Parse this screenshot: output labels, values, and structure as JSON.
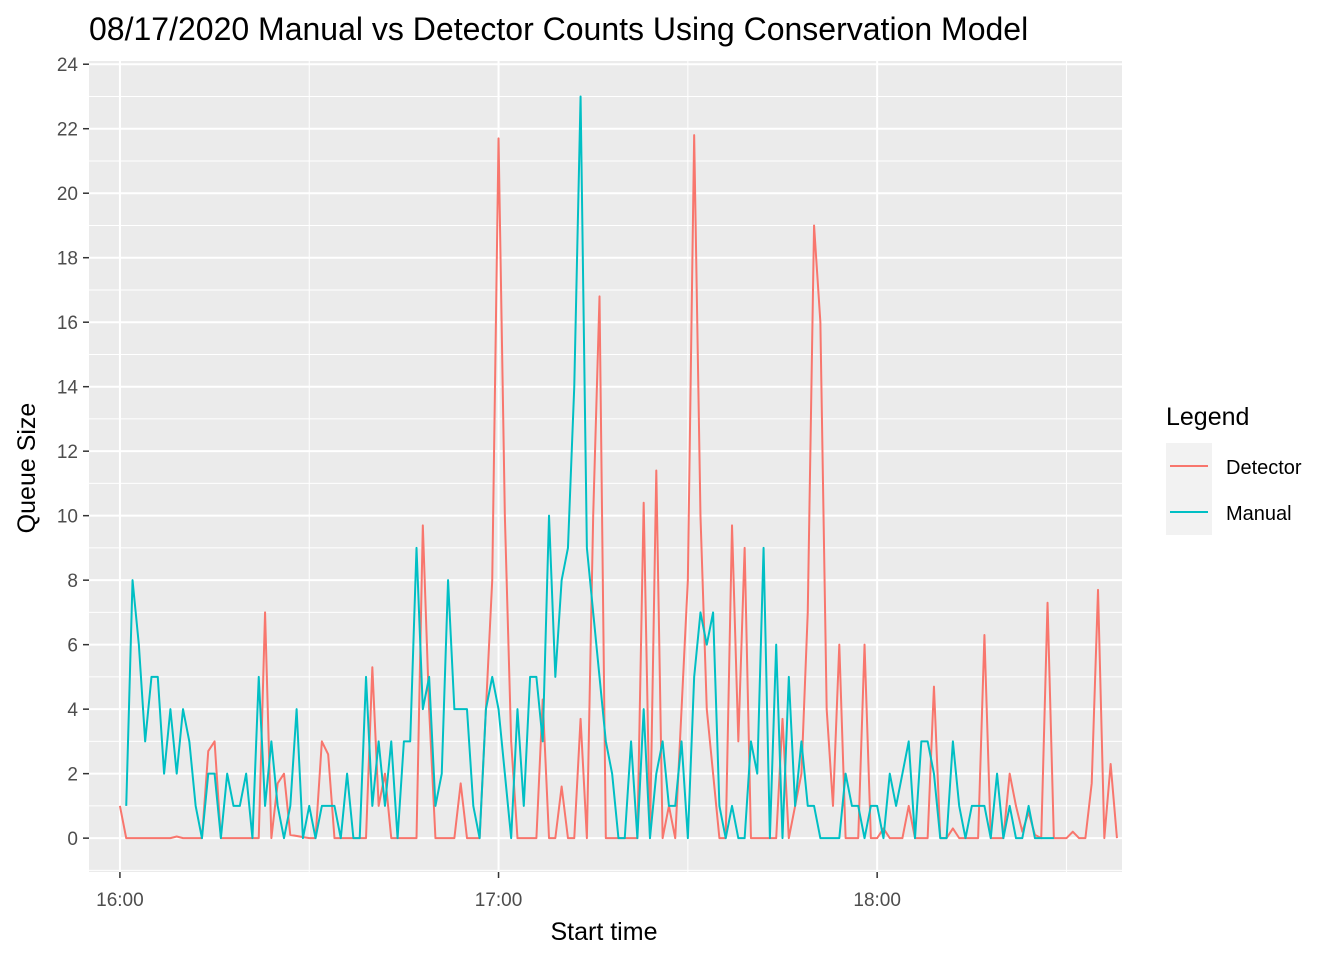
{
  "chart_data": {
    "type": "line",
    "title": "08/17/2020 Manual vs Detector Counts Using Conservation Model",
    "xlabel": "Start time",
    "ylabel": "Queue Size",
    "x_unit": "minutes after 16:00",
    "xlim": [
      -4.9,
      158.8
    ],
    "ylim": [
      -1.05,
      24.1
    ],
    "x_ticks": [
      {
        "value": 0,
        "label": "16:00"
      },
      {
        "value": 60,
        "label": "17:00"
      },
      {
        "value": 120,
        "label": "18:00"
      }
    ],
    "y_ticks": [
      0,
      2,
      4,
      6,
      8,
      10,
      12,
      14,
      16,
      18,
      20,
      22,
      24
    ],
    "grid": true,
    "legend": {
      "title": "Legend",
      "position": "right"
    },
    "series": [
      {
        "name": "Detector",
        "color": "#F8766D",
        "points": [
          [
            0,
            1
          ],
          [
            1,
            0
          ],
          [
            8,
            0
          ],
          [
            9,
            0.05
          ],
          [
            10,
            0
          ],
          [
            13,
            0
          ],
          [
            14,
            2.7
          ],
          [
            15,
            3
          ],
          [
            16,
            0
          ],
          [
            22,
            0
          ],
          [
            23,
            7
          ],
          [
            24,
            0
          ],
          [
            25,
            1.7
          ],
          [
            26,
            2
          ],
          [
            27,
            0.1
          ],
          [
            30,
            0
          ],
          [
            31,
            0
          ],
          [
            32,
            3
          ],
          [
            33,
            2.6
          ],
          [
            34,
            0
          ],
          [
            39,
            0
          ],
          [
            40,
            5.3
          ],
          [
            41,
            1
          ],
          [
            42,
            2
          ],
          [
            43,
            0
          ],
          [
            46,
            0
          ],
          [
            47,
            0
          ],
          [
            48,
            9.7
          ],
          [
            49,
            4
          ],
          [
            50,
            0
          ],
          [
            51,
            0
          ],
          [
            52,
            0
          ],
          [
            53,
            0
          ],
          [
            54,
            1.7
          ],
          [
            55,
            0
          ],
          [
            57,
            0
          ],
          [
            58,
            4
          ],
          [
            59,
            8
          ],
          [
            60,
            21.7
          ],
          [
            61,
            10
          ],
          [
            62,
            3
          ],
          [
            63,
            0
          ],
          [
            65,
            0
          ],
          [
            66,
            0
          ],
          [
            67,
            4.3
          ],
          [
            68,
            0
          ],
          [
            69,
            0
          ],
          [
            70,
            1.6
          ],
          [
            71,
            0
          ],
          [
            72,
            0
          ],
          [
            73,
            3.7
          ],
          [
            74,
            0
          ],
          [
            75,
            10
          ],
          [
            76,
            16.8
          ],
          [
            77,
            0
          ],
          [
            82,
            0
          ],
          [
            83,
            10.4
          ],
          [
            84,
            0
          ],
          [
            85,
            11.4
          ],
          [
            86,
            0
          ],
          [
            87,
            1
          ],
          [
            88,
            0
          ],
          [
            89,
            4
          ],
          [
            90,
            8
          ],
          [
            91,
            21.8
          ],
          [
            92,
            10
          ],
          [
            93,
            4
          ],
          [
            94,
            2
          ],
          [
            95,
            0
          ],
          [
            96,
            0
          ],
          [
            97,
            9.7
          ],
          [
            98,
            3
          ],
          [
            99,
            9
          ],
          [
            100,
            0
          ],
          [
            104,
            0
          ],
          [
            105,
            3.7
          ],
          [
            106,
            0
          ],
          [
            107,
            1
          ],
          [
            108,
            2
          ],
          [
            109,
            7
          ],
          [
            110,
            19
          ],
          [
            111,
            16
          ],
          [
            112,
            4
          ],
          [
            113,
            1
          ],
          [
            114,
            6
          ],
          [
            115,
            0
          ],
          [
            117,
            0
          ],
          [
            118,
            6
          ],
          [
            119,
            0
          ],
          [
            120,
            0
          ],
          [
            121,
            0.3
          ],
          [
            122,
            0
          ],
          [
            124,
            0
          ],
          [
            125,
            1
          ],
          [
            126,
            0
          ],
          [
            128,
            0
          ],
          [
            129,
            4.7
          ],
          [
            130,
            0
          ],
          [
            131,
            0
          ],
          [
            132,
            0.3
          ],
          [
            133,
            0
          ],
          [
            135,
            0
          ],
          [
            136,
            0
          ],
          [
            137,
            6.3
          ],
          [
            138,
            0
          ],
          [
            140,
            0
          ],
          [
            141,
            2
          ],
          [
            142,
            1
          ],
          [
            143,
            0.2
          ],
          [
            144,
            0.8
          ],
          [
            145,
            0.1
          ],
          [
            146,
            0
          ],
          [
            147,
            7.3
          ],
          [
            148,
            0
          ],
          [
            150,
            0
          ],
          [
            151,
            0.2
          ],
          [
            152,
            0
          ],
          [
            153,
            0
          ],
          [
            154,
            1.7
          ],
          [
            155,
            7.7
          ],
          [
            156,
            0
          ],
          [
            157,
            2.3
          ],
          [
            158,
            0
          ]
        ]
      },
      {
        "name": "Manual",
        "color": "#00BFC4",
        "points": [
          [
            1,
            1
          ],
          [
            2,
            8
          ],
          [
            3,
            6
          ],
          [
            4,
            3
          ],
          [
            5,
            5
          ],
          [
            6,
            5
          ],
          [
            7,
            2
          ],
          [
            8,
            4
          ],
          [
            9,
            2
          ],
          [
            10,
            4
          ],
          [
            11,
            3
          ],
          [
            12,
            1
          ],
          [
            13,
            0
          ],
          [
            14,
            2
          ],
          [
            15,
            2
          ],
          [
            16,
            0
          ],
          [
            17,
            2
          ],
          [
            18,
            1
          ],
          [
            19,
            1
          ],
          [
            20,
            2
          ],
          [
            21,
            0
          ],
          [
            22,
            5
          ],
          [
            23,
            1
          ],
          [
            24,
            3
          ],
          [
            25,
            1
          ],
          [
            26,
            0
          ],
          [
            27,
            1
          ],
          [
            28,
            4
          ],
          [
            29,
            0
          ],
          [
            30,
            1
          ],
          [
            31,
            0
          ],
          [
            32,
            1
          ],
          [
            33,
            1
          ],
          [
            34,
            1
          ],
          [
            35,
            0
          ],
          [
            36,
            2
          ],
          [
            37,
            0
          ],
          [
            38,
            0
          ],
          [
            39,
            5
          ],
          [
            40,
            1
          ],
          [
            41,
            3
          ],
          [
            42,
            1
          ],
          [
            43,
            3
          ],
          [
            44,
            0
          ],
          [
            45,
            3
          ],
          [
            46,
            3
          ],
          [
            47,
            9
          ],
          [
            48,
            4
          ],
          [
            49,
            5
          ],
          [
            50,
            1
          ],
          [
            51,
            2
          ],
          [
            52,
            8
          ],
          [
            53,
            4
          ],
          [
            54,
            4
          ],
          [
            55,
            4
          ],
          [
            56,
            1
          ],
          [
            57,
            0
          ],
          [
            58,
            4
          ],
          [
            59,
            5
          ],
          [
            60,
            4
          ],
          [
            61,
            2
          ],
          [
            62,
            0
          ],
          [
            63,
            4
          ],
          [
            64,
            1
          ],
          [
            65,
            5
          ],
          [
            66,
            5
          ],
          [
            67,
            3
          ],
          [
            68,
            10
          ],
          [
            69,
            5
          ],
          [
            70,
            8
          ],
          [
            71,
            9
          ],
          [
            72,
            14
          ],
          [
            73,
            23
          ],
          [
            74,
            9
          ],
          [
            75,
            7
          ],
          [
            76,
            5
          ],
          [
            77,
            3
          ],
          [
            78,
            2
          ],
          [
            79,
            0
          ],
          [
            80,
            0
          ],
          [
            81,
            3
          ],
          [
            82,
            0
          ],
          [
            83,
            4
          ],
          [
            84,
            0
          ],
          [
            85,
            2
          ],
          [
            86,
            3
          ],
          [
            87,
            1
          ],
          [
            88,
            1
          ],
          [
            89,
            3
          ],
          [
            90,
            0
          ],
          [
            91,
            5
          ],
          [
            92,
            7
          ],
          [
            93,
            6
          ],
          [
            94,
            7
          ],
          [
            95,
            1
          ],
          [
            96,
            0
          ],
          [
            97,
            1
          ],
          [
            98,
            0
          ],
          [
            99,
            0
          ],
          [
            100,
            3
          ],
          [
            101,
            2
          ],
          [
            102,
            9
          ],
          [
            103,
            0
          ],
          [
            104,
            6
          ],
          [
            105,
            0
          ],
          [
            106,
            5
          ],
          [
            107,
            1
          ],
          [
            108,
            3
          ],
          [
            109,
            1
          ],
          [
            110,
            1
          ],
          [
            111,
            0
          ],
          [
            112,
            0
          ],
          [
            113,
            0
          ],
          [
            114,
            0
          ],
          [
            115,
            2
          ],
          [
            116,
            1
          ],
          [
            117,
            1
          ],
          [
            118,
            0
          ],
          [
            119,
            1
          ],
          [
            120,
            1
          ],
          [
            121,
            0
          ],
          [
            122,
            2
          ],
          [
            123,
            1
          ],
          [
            124,
            2
          ],
          [
            125,
            3
          ],
          [
            126,
            0
          ],
          [
            127,
            3
          ],
          [
            128,
            3
          ],
          [
            129,
            2
          ],
          [
            130,
            0
          ],
          [
            131,
            0
          ],
          [
            132,
            3
          ],
          [
            133,
            1
          ],
          [
            134,
            0
          ],
          [
            135,
            1
          ],
          [
            136,
            1
          ],
          [
            137,
            1
          ],
          [
            138,
            0
          ],
          [
            139,
            2
          ],
          [
            140,
            0
          ],
          [
            141,
            1
          ],
          [
            142,
            0
          ],
          [
            143,
            0
          ],
          [
            144,
            1
          ],
          [
            145,
            0
          ],
          [
            146,
            0
          ],
          [
            147,
            0
          ],
          [
            148,
            0
          ]
        ]
      }
    ]
  }
}
